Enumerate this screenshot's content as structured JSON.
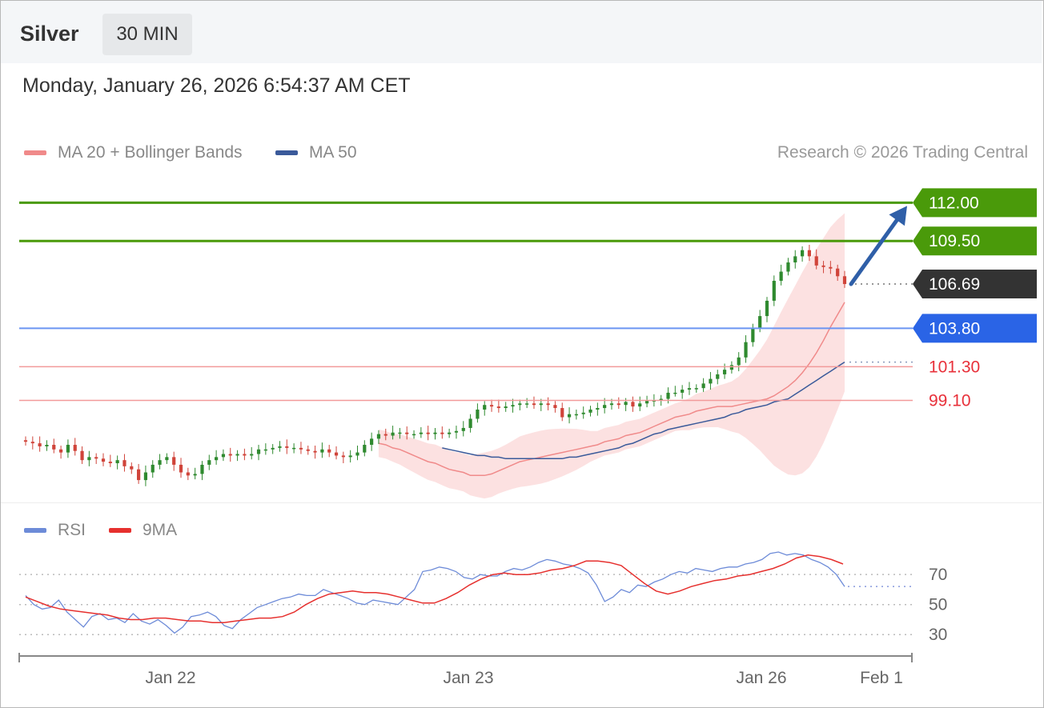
{
  "header": {
    "title": "Silver",
    "timeframe": "30 MIN"
  },
  "datetime": "Monday, January 26, 2026 6:54:37 AM CET",
  "legend": {
    "bollinger": "MA 20 + Bollinger Bands",
    "ma50": "MA 50",
    "credit": "Research © 2026 Trading Central"
  },
  "rsi_legend": {
    "rsi": "RSI",
    "ma9": "9MA"
  },
  "colors": {
    "green": "#4a9a0a",
    "blue": "#2a64e6",
    "red": "#e8303a",
    "dark": "#333333",
    "ma20": "#f08a8a",
    "ma50": "#3a5a9a",
    "band": "#fcdcdc",
    "rsi": "#6d8bd8",
    "ma9": "#e6302e",
    "up": "#2f8a2f",
    "down": "#d0443a"
  },
  "chart_data": {
    "type": "candlestick",
    "title": "Silver",
    "timeframe": "30 MIN",
    "x_labels": [
      "Jan 22",
      "Jan 23",
      "Jan 26",
      "Feb 1"
    ],
    "price_ylim": [
      92.6,
      114.0
    ],
    "levels": [
      {
        "label": "112.00",
        "value": 112.0,
        "kind": "resistance"
      },
      {
        "label": "109.50",
        "value": 109.5,
        "kind": "resistance"
      },
      {
        "label": "106.69",
        "value": 106.69,
        "kind": "last"
      },
      {
        "label": "103.80",
        "value": 103.8,
        "kind": "pivot"
      },
      {
        "label": "101.30",
        "value": 101.3,
        "kind": "support"
      },
      {
        "label": "99.10",
        "value": 99.1,
        "kind": "support"
      }
    ],
    "target_arrow": {
      "from": 106.69,
      "to": 112.0
    },
    "closes": [
      96.4,
      96.3,
      96.1,
      96.2,
      95.9,
      95.7,
      96.2,
      95.8,
      95.2,
      95.4,
      95.3,
      95.1,
      95.0,
      95.2,
      94.8,
      94.6,
      93.9,
      94.4,
      94.9,
      95.2,
      95.4,
      94.9,
      94.4,
      94.2,
      94.3,
      94.9,
      95.2,
      95.4,
      95.6,
      95.5,
      95.6,
      95.5,
      95.6,
      95.9,
      95.9,
      96.0,
      96.1,
      96.0,
      96.0,
      95.9,
      95.8,
      95.7,
      95.9,
      95.7,
      95.5,
      95.4,
      95.5,
      95.7,
      96.2,
      96.6,
      96.9,
      96.8,
      97.0,
      97.0,
      96.9,
      96.9,
      97.0,
      96.9,
      97.0,
      96.9,
      97.0,
      97.1,
      97.3,
      97.9,
      98.5,
      98.8,
      98.7,
      98.6,
      98.7,
      98.8,
      98.9,
      98.9,
      98.8,
      98.9,
      98.8,
      98.6,
      98.0,
      98.2,
      98.2,
      98.3,
      98.5,
      98.6,
      98.8,
      98.9,
      98.8,
      99.0,
      98.7,
      98.9,
      99.1,
      99.1,
      99.2,
      99.6,
      99.6,
      99.8,
      99.9,
      99.9,
      100.2,
      100.5,
      100.8,
      101.1,
      101.4,
      101.9,
      102.9,
      103.8,
      104.6,
      105.6,
      106.9,
      107.5,
      108.1,
      108.5,
      108.9,
      108.5,
      107.9,
      107.8,
      107.7,
      107.2,
      106.69
    ],
    "ma20": [
      96.3,
      96.2,
      96.0,
      95.9,
      95.7,
      95.5,
      95.3,
      95.1,
      95.0,
      94.8,
      94.6,
      94.5,
      94.4,
      94.2,
      94.2,
      94.2,
      94.3,
      94.5,
      94.7,
      94.9,
      95.1,
      95.2,
      95.3,
      95.4,
      95.5,
      95.6,
      95.7,
      95.8,
      95.9,
      96.0,
      96.1,
      96.2,
      96.4,
      96.5,
      96.6,
      96.8,
      96.9,
      97.0,
      97.2,
      97.4,
      97.6,
      97.8,
      98.0,
      98.1,
      98.2,
      98.4,
      98.5,
      98.6,
      98.7,
      98.7,
      98.7,
      98.8,
      98.9,
      99.0,
      99.1,
      99.2,
      99.4,
      99.7,
      100.0,
      100.4,
      100.9,
      101.5,
      102.2,
      103.0,
      103.9,
      104.7,
      105.5
    ],
    "ma50": [
      96.0,
      95.9,
      95.8,
      95.7,
      95.6,
      95.5,
      95.5,
      95.4,
      95.4,
      95.3,
      95.3,
      95.3,
      95.3,
      95.3,
      95.3,
      95.3,
      95.3,
      95.3,
      95.4,
      95.4,
      95.5,
      95.6,
      95.7,
      95.8,
      95.9,
      96.0,
      96.2,
      96.3,
      96.5,
      96.7,
      96.9,
      97.0,
      97.2,
      97.3,
      97.4,
      97.5,
      97.6,
      97.7,
      97.8,
      97.9,
      98.0,
      98.2,
      98.3,
      98.5,
      98.6,
      98.7,
      98.8,
      99.0,
      99.1,
      99.2,
      99.5,
      99.8,
      100.1,
      100.4,
      100.7,
      101.0,
      101.3,
      101.6
    ],
    "rsi_ylim": [
      20,
      85
    ],
    "rsi_ticks": [
      70,
      50,
      30
    ],
    "rsi": [
      56,
      50,
      47,
      48,
      53,
      45,
      40,
      35,
      42,
      44,
      40,
      41,
      38,
      44,
      39,
      37,
      40,
      36,
      31,
      35,
      42,
      43,
      45,
      42,
      36,
      34,
      40,
      44,
      48,
      50,
      52,
      54,
      55,
      57,
      56,
      56,
      60,
      58,
      56,
      54,
      51,
      50,
      53,
      52,
      51,
      50,
      55,
      60,
      72,
      73,
      75,
      74,
      72,
      68,
      67,
      70,
      69,
      69,
      72,
      74,
      73,
      75,
      78,
      80,
      79,
      77,
      76,
      74,
      71,
      63,
      52,
      55,
      60,
      58,
      63,
      62,
      65,
      67,
      70,
      72,
      71,
      74,
      73,
      72,
      74,
      75,
      75,
      77,
      78,
      80,
      84,
      85,
      83,
      84,
      83,
      80,
      78,
      75,
      70,
      62
    ],
    "ma9": [
      55,
      52,
      49,
      47,
      46,
      45,
      44,
      43,
      41,
      40,
      40,
      41,
      41,
      40,
      39,
      39,
      38,
      38,
      39,
      40,
      41,
      41,
      42,
      45,
      50,
      54,
      57,
      58,
      59,
      58,
      58,
      57,
      55,
      53,
      51,
      51,
      54,
      58,
      63,
      67,
      70,
      71,
      70,
      70,
      71,
      73,
      74,
      76,
      79,
      79,
      78,
      76,
      70,
      64,
      59,
      57,
      59,
      62,
      64,
      66,
      67,
      69,
      70,
      72,
      74,
      77,
      81,
      83,
      82,
      80,
      77
    ]
  }
}
